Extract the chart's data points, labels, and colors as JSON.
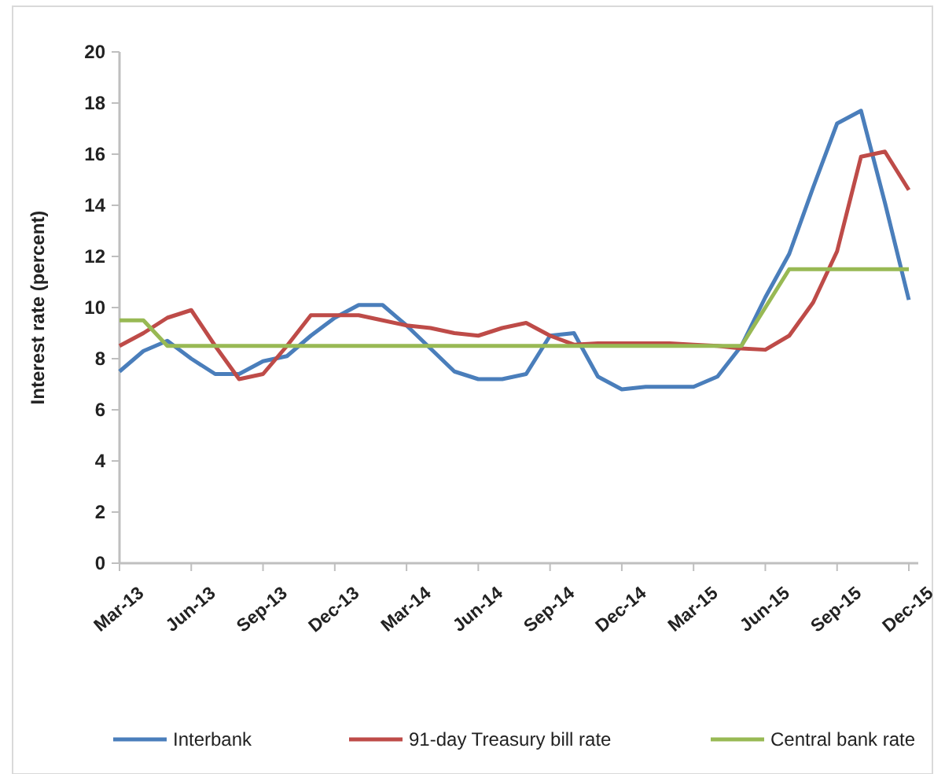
{
  "chart_data": {
    "type": "line",
    "ylabel": "Interest rate (percent)",
    "categories": [
      "Mar-13",
      null,
      null,
      "Jun-13",
      null,
      null,
      "Sep-13",
      null,
      null,
      "Dec-13",
      null,
      null,
      "Mar-14",
      null,
      null,
      "Jun-14",
      null,
      null,
      "Sep-14",
      null,
      null,
      "Dec-14",
      null,
      null,
      "Mar-15",
      null,
      null,
      "Jun-15",
      null,
      null,
      "Sep-15",
      null,
      null,
      "Dec-15"
    ],
    "series": [
      {
        "name": "Interbank",
        "color": "#4a7ebb",
        "values": [
          7.5,
          8.3,
          8.7,
          8.0,
          7.4,
          7.4,
          7.9,
          8.1,
          8.9,
          9.6,
          10.1,
          10.1,
          9.3,
          8.4,
          7.5,
          7.2,
          7.2,
          7.4,
          8.9,
          9.0,
          7.3,
          6.8,
          6.9,
          6.9,
          6.9,
          7.3,
          8.5,
          10.4,
          12.1,
          14.7,
          17.2,
          17.7,
          14.1,
          10.3
        ]
      },
      {
        "name": "91-day Treasury bill rate",
        "color": "#be4b48",
        "values": [
          8.5,
          9.0,
          9.6,
          9.9,
          8.5,
          7.2,
          7.4,
          8.5,
          9.7,
          9.7,
          9.7,
          9.5,
          9.3,
          9.2,
          9.0,
          8.9,
          9.2,
          9.4,
          8.9,
          8.55,
          8.6,
          8.6,
          8.6,
          8.6,
          8.55,
          8.5,
          8.4,
          8.35,
          8.9,
          10.2,
          12.2,
          15.9,
          16.1,
          14.6
        ]
      },
      {
        "name": "Central bank rate",
        "color": "#98b954",
        "values": [
          9.5,
          9.5,
          8.5,
          8.5,
          8.5,
          8.5,
          8.5,
          8.5,
          8.5,
          8.5,
          8.5,
          8.5,
          8.5,
          8.5,
          8.5,
          8.5,
          8.5,
          8.5,
          8.5,
          8.5,
          8.5,
          8.5,
          8.5,
          8.5,
          8.5,
          8.5,
          8.5,
          10.0,
          11.5,
          11.5,
          11.5,
          11.5,
          11.5,
          11.5
        ]
      }
    ],
    "ylim": [
      0,
      20
    ],
    "yticks": [
      0,
      2,
      4,
      6,
      8,
      10,
      12,
      14,
      16,
      18,
      20
    ],
    "grid": false,
    "legend": "bottom",
    "marker": "none",
    "line_style": "solid"
  }
}
